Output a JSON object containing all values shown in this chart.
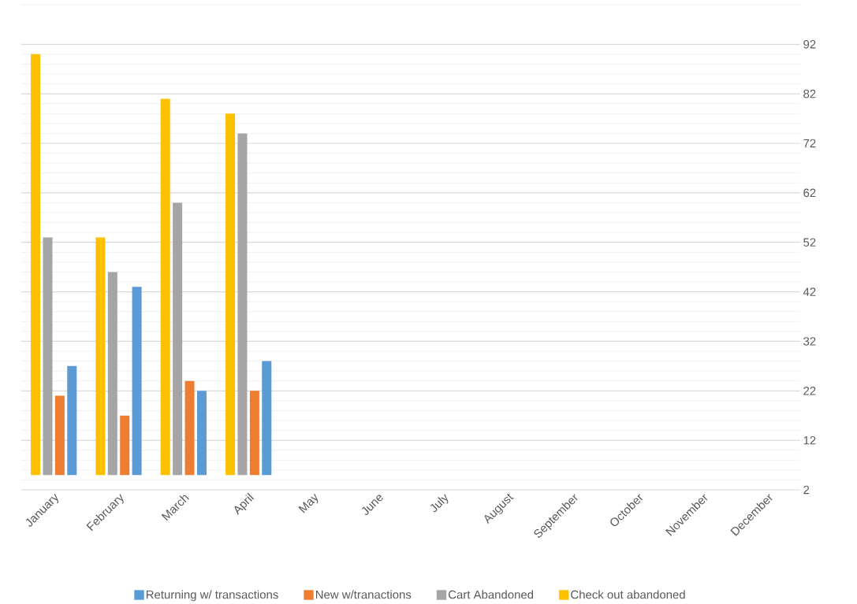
{
  "chart_data": {
    "type": "bar",
    "categories": [
      "January",
      "February",
      "March",
      "April",
      "May",
      "June",
      "July",
      "August",
      "September",
      "October",
      "November",
      "December"
    ],
    "series": [
      {
        "name": "Returning w/ transactions",
        "color": "#5b9bd5",
        "base": [
          5,
          5,
          5,
          5,
          null,
          null,
          null,
          null,
          null,
          null,
          null,
          null
        ],
        "values": [
          22,
          38,
          17,
          23,
          null,
          null,
          null,
          null,
          null,
          null,
          null,
          null
        ]
      },
      {
        "name": "New w/tranactions",
        "color": "#ed7d31",
        "base": [
          5,
          5,
          5,
          5,
          null,
          null,
          null,
          null,
          null,
          null,
          null,
          null
        ],
        "values": [
          16,
          12,
          19,
          17,
          null,
          null,
          null,
          null,
          null,
          null,
          null,
          null
        ]
      },
      {
        "name": "Cart Abandoned",
        "color": "#a5a5a5",
        "base": [
          5,
          5,
          5,
          5,
          null,
          null,
          null,
          null,
          null,
          null,
          null,
          null
        ],
        "values": [
          48,
          41,
          55,
          69,
          null,
          null,
          null,
          null,
          null,
          null,
          null,
          null
        ]
      },
      {
        "name": "Check out abandoned",
        "color": "#ffc000",
        "base": [
          5,
          5,
          5,
          5,
          null,
          null,
          null,
          null,
          null,
          null,
          null,
          null
        ],
        "values": [
          85,
          48,
          76,
          73,
          null,
          null,
          null,
          null,
          null,
          null,
          null,
          null
        ]
      }
    ],
    "ylim": [
      2,
      100
    ],
    "yticks": [
      2,
      12,
      22,
      32,
      42,
      52,
      62,
      72,
      82,
      92
    ],
    "grid": "y",
    "legend": "bottom"
  }
}
